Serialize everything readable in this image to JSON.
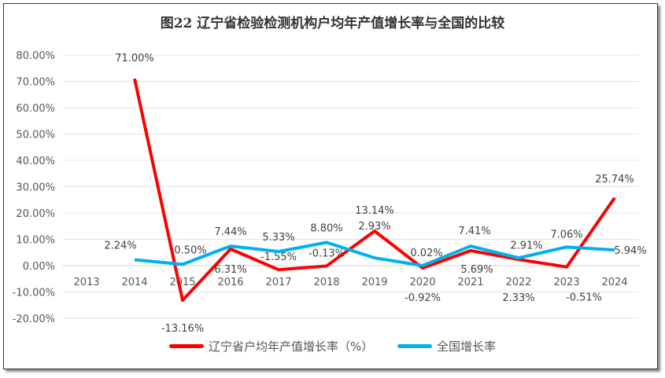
{
  "chart_data": {
    "type": "line",
    "title": "图22  辽宁省检验检测机构户均年产值增长率与全国的比较",
    "categories": [
      "2013",
      "2014",
      "2015",
      "2016",
      "2017",
      "2018",
      "2019",
      "2020",
      "2021",
      "2022",
      "2023",
      "2024"
    ],
    "ylim": [
      -20,
      80
    ],
    "yticks": [
      "-20.00%",
      "-10.00%",
      "0.00%",
      "10.00%",
      "20.00%",
      "30.00%",
      "40.00%",
      "50.00%",
      "60.00%",
      "70.00%",
      "80.00%"
    ],
    "grid": true,
    "legend_position": "bottom",
    "series": [
      {
        "name": "辽宁省户均年产值增长率（%）",
        "color": "#FF0000",
        "values": [
          null,
          71.0,
          -13.16,
          6.31,
          -1.55,
          -0.13,
          13.14,
          -0.92,
          5.69,
          2.33,
          -0.51,
          25.74
        ],
        "labels": [
          "",
          "71.00%",
          "-13.16%",
          "6.31%",
          "-1.55%",
          "-0.13%",
          "13.14%",
          "-0.92%",
          "5.69%",
          "2.33%",
          "-0.51%",
          "25.74%"
        ]
      },
      {
        "name": "全国增长率",
        "color": "#00B0F0",
        "values": [
          null,
          2.24,
          0.5,
          7.44,
          5.33,
          8.8,
          2.93,
          0.02,
          7.41,
          2.91,
          7.06,
          5.94
        ],
        "labels": [
          "",
          "2.24%",
          "0.50%",
          "7.44%",
          "5.33%",
          "8.80%",
          "2.93%",
          "0.02%",
          "7.41%",
          "2.91%",
          "7.06%",
          "5.94%"
        ]
      }
    ]
  }
}
